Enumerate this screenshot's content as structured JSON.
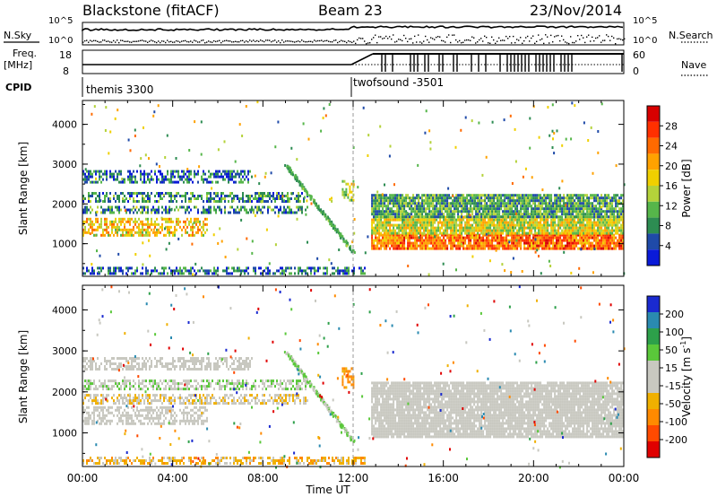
{
  "header": {
    "radar": "Blackstone (fitACF)",
    "beam": "Beam 23",
    "date": "23/Nov/2014"
  },
  "strip_panels": {
    "sky_label": "N.Sky",
    "search_label": "N.Search",
    "freq_label_top": "Freq.",
    "freq_label_unit": "[MHz]",
    "nave_label": "Nave",
    "cpid_label": "CPID",
    "noise_ticks": [
      "10^5",
      "10^0"
    ],
    "freq_ticks": [
      "18",
      "8"
    ],
    "nave_ticks": [
      "60",
      "0"
    ]
  },
  "cpid_segments": [
    {
      "name": "themis 3300",
      "start": "00:00",
      "end": "12:00"
    },
    {
      "name": "twofsound -3501",
      "start": "12:00",
      "end": "24:00"
    }
  ],
  "colorbars": {
    "power": {
      "title": "Power [dB]",
      "ticks": [
        "28",
        "24",
        "20",
        "16",
        "12",
        "8",
        "4"
      ],
      "colors": [
        "#d80000",
        "#ff3000",
        "#ff6a00",
        "#ffa200",
        "#f0d000",
        "#b4d23a",
        "#56b64a",
        "#2d8c52",
        "#1f4aa8",
        "#0a1ad8"
      ]
    },
    "velocity": {
      "title": "Velocity",
      "unit": "[m s",
      "unit_sup": "-1",
      "unit_close": "]",
      "ticks": [
        "200",
        "100",
        "50",
        "15",
        "-15",
        "-50",
        "-100",
        "-200"
      ],
      "colors": [
        "#1a2ad0",
        "#2a8ab0",
        "#2da04a",
        "#5ac83a",
        "#c8c8c0",
        "#c8c8c0",
        "#f0b000",
        "#ff8a00",
        "#ff4a00",
        "#e00000"
      ]
    }
  },
  "chart_data": [
    {
      "type": "heatmap",
      "title": "Power",
      "xlabel": "Time UT",
      "ylabel": "Slant Range [km]",
      "xlim": [
        "00:00",
        "24:00"
      ],
      "ylim": [
        180,
        4600
      ],
      "x_ticks": [
        "00:00",
        "04:00",
        "08:00",
        "12:00",
        "16:00",
        "20:00",
        "00:00"
      ],
      "y_ticks": [
        "1000",
        "2000",
        "3000",
        "4000"
      ],
      "colorbar_range_db": [
        0,
        32
      ],
      "bands": [
        {
          "t0": 0.0,
          "t1": 5.5,
          "r0": 1200,
          "r1": 1650,
          "value": 18
        },
        {
          "t0": 0.0,
          "t1": 10.0,
          "r0": 1750,
          "r1": 1950,
          "value": 8
        },
        {
          "t0": 0.0,
          "t1": 10.0,
          "r0": 2050,
          "r1": 2300,
          "value": 8
        },
        {
          "t0": 0.0,
          "t1": 7.5,
          "r0": 2550,
          "r1": 2850,
          "value": 6
        },
        {
          "t0": 11.5,
          "t1": 12.0,
          "r0": 2100,
          "r1": 2600,
          "value": 14
        },
        {
          "t0": 12.8,
          "t1": 24.0,
          "r0": 900,
          "r1": 1250,
          "value": 24
        },
        {
          "t0": 12.8,
          "t1": 24.0,
          "r0": 1250,
          "r1": 1700,
          "value": 16
        },
        {
          "t0": 12.8,
          "t1": 24.0,
          "r0": 1700,
          "r1": 2250,
          "value": 10
        },
        {
          "t0": 0.0,
          "t1": 12.5,
          "r0": 250,
          "r1": 420,
          "value": 6
        }
      ],
      "interpolated_tracks": [
        {
          "t0": 9.0,
          "t1": 12.0,
          "r0": 3000,
          "r1": 800,
          "value": 10
        }
      ]
    },
    {
      "type": "heatmap",
      "title": "Velocity",
      "xlabel": "Time UT",
      "ylabel": "Slant Range [km]",
      "xlim": [
        "00:00",
        "24:00"
      ],
      "ylim": [
        180,
        4600
      ],
      "x_ticks": [
        "00:00",
        "04:00",
        "08:00",
        "12:00",
        "16:00",
        "20:00",
        "00:00"
      ],
      "y_ticks": [
        "1000",
        "2000",
        "3000",
        "4000"
      ],
      "colorbar_range_ms": [
        -200,
        200
      ],
      "bands": [
        {
          "t0": 0.0,
          "t1": 5.5,
          "r0": 1200,
          "r1": 1650,
          "value": 0
        },
        {
          "t0": 0.0,
          "t1": 10.0,
          "r0": 1750,
          "r1": 1950,
          "value": -30
        },
        {
          "t0": 0.0,
          "t1": 10.0,
          "r0": 2050,
          "r1": 2300,
          "value": 30
        },
        {
          "t0": 0.0,
          "t1": 7.5,
          "r0": 2550,
          "r1": 2850,
          "value": 0
        },
        {
          "t0": 11.5,
          "t1": 12.0,
          "r0": 2100,
          "r1": 2600,
          "value": -80
        },
        {
          "t0": 12.8,
          "t1": 24.0,
          "r0": 900,
          "r1": 2250,
          "value": 0
        },
        {
          "t0": 0.0,
          "t1": 12.5,
          "r0": 250,
          "r1": 420,
          "value": -60
        }
      ],
      "interpolated_tracks": [
        {
          "t0": 9.0,
          "t1": 12.0,
          "r0": 3000,
          "r1": 800,
          "value": 40
        }
      ]
    }
  ]
}
